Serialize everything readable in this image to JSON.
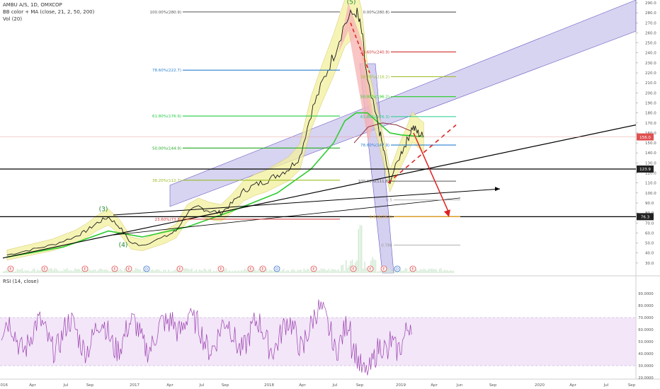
{
  "header": {
    "symbol": "AMBU A/S, 1D, OMXCOP",
    "indicator_bb": "BB color + MA (close, 21, 2, 50, 200)",
    "indicator_vol": "Vol (20)",
    "rsi_label": "RSI (14, close)"
  },
  "colors": {
    "price": "#1b1b1b",
    "ma50": "#2ecc2e",
    "bb_fill": "#f3f09c",
    "bb_fill_red": "#f7b6b6",
    "channel_fill": "#b7b0e6",
    "channel_line": "#6a5cc4",
    "rsi_line": "#9c3fb0",
    "rsi_band": "#e9d6f3",
    "arrow_red": "#e02020",
    "black_line": "#000000"
  },
  "chart_data": [
    {
      "type": "line",
      "title": "",
      "ylim": [
        20,
        290
      ],
      "y_ticks": [
        "290.0",
        "280.0",
        "270.0",
        "260.0",
        "250.0",
        "240.0",
        "230.0",
        "220.0",
        "210.0",
        "200.0",
        "190.0",
        "180.0",
        "170.0",
        "160.0",
        "150.0",
        "140.0",
        "130.0",
        "120.0",
        "110.0",
        "100.0",
        "90.0",
        "80.0",
        "70.0",
        "60.0",
        "50.0",
        "40.0",
        "30.0"
      ],
      "x_ticks": [
        "2016",
        "Apr",
        "Jul",
        "Sep",
        "2017",
        "Apr",
        "Jul",
        "Sep",
        "2018",
        "Apr",
        "Jul",
        "Sep",
        "2019",
        "Apr",
        "Jun",
        "Sep",
        "2020",
        "Apr",
        "Jul",
        "Sep"
      ],
      "price_tags": [
        {
          "label": "156.0",
          "value": 156,
          "color": "#e05050"
        },
        {
          "label": "123.9",
          "value": 123.9,
          "color": "#222222"
        },
        {
          "label": "76.3",
          "value": 76.3,
          "color": "#222222"
        }
      ],
      "price_points": [
        [
          "2016-01",
          38
        ],
        [
          "2016-03",
          43
        ],
        [
          "2016-05",
          48
        ],
        [
          "2016-07",
          56
        ],
        [
          "2016-08",
          62
        ],
        [
          "2016-09",
          70
        ],
        [
          "2016-10",
          76
        ],
        [
          "2016-11",
          66
        ],
        [
          "2016-12",
          50
        ],
        [
          "2017-01",
          48
        ],
        [
          "2017-03",
          56
        ],
        [
          "2017-04",
          62
        ],
        [
          "2017-05",
          80
        ],
        [
          "2017-06",
          86
        ],
        [
          "2017-07",
          82
        ],
        [
          "2017-08",
          80
        ],
        [
          "2017-09",
          90
        ],
        [
          "2017-10",
          102
        ],
        [
          "2017-11",
          108
        ],
        [
          "2017-12",
          112
        ],
        [
          "2018-01",
          118
        ],
        [
          "2018-02",
          124
        ],
        [
          "2018-03",
          136
        ],
        [
          "2018-04",
          180
        ],
        [
          "2018-05",
          210
        ],
        [
          "2018-06",
          238
        ],
        [
          "2018-07",
          270
        ],
        [
          "2018-08",
          282
        ],
        [
          "2018-08b",
          260
        ],
        [
          "2018-09",
          210
        ],
        [
          "2018-10",
          165
        ],
        [
          "2018-10b",
          140
        ],
        [
          "2018-11",
          112
        ],
        [
          "2018-12",
          140
        ],
        [
          "2018-12b",
          152
        ],
        [
          "2019-01",
          166
        ],
        [
          "2019-01b",
          160
        ],
        [
          "2019-02",
          156
        ]
      ],
      "ma50_points": [
        [
          "2016-01",
          36
        ],
        [
          "2016-06",
          46
        ],
        [
          "2016-10",
          62
        ],
        [
          "2017-01",
          56
        ],
        [
          "2017-05",
          66
        ],
        [
          "2017-09",
          82
        ],
        [
          "2018-01",
          100
        ],
        [
          "2018-04",
          124
        ],
        [
          "2018-06",
          150
        ],
        [
          "2018-07",
          172
        ],
        [
          "2018-08",
          180
        ],
        [
          "2018-09",
          180
        ],
        [
          "2018-10",
          170
        ],
        [
          "2018-11",
          160
        ],
        [
          "2018-12",
          158
        ],
        [
          "2019-02",
          156
        ]
      ],
      "fib_left": [
        {
          "label": "100.00%(280.9)",
          "value": 280.9,
          "color": "#555555"
        },
        {
          "label": "78.60%(222.7)",
          "value": 222.7,
          "color": "#2a7fd0"
        },
        {
          "label": "61.80%(176.9)",
          "value": 176.9,
          "color": "#22cc44"
        },
        {
          "label": "50.00%(144.9)",
          "value": 144.9,
          "color": "#22aa22"
        },
        {
          "label": "38.20%(112.7)",
          "value": 112.7,
          "color": "#99bb22"
        },
        {
          "label": "23.60%(73.8)",
          "value": 73.8,
          "color": "#d03030"
        }
      ],
      "fib_right": [
        {
          "label": "0.00%(280.8)",
          "value": 280.8,
          "color": "#555555"
        },
        {
          "label": "23.60%(240.9)",
          "value": 240.9,
          "color": "#d03030"
        },
        {
          "label": "38.20%(216.2)",
          "value": 216.2,
          "color": "#a0c030"
        },
        {
          "label": "50.00%(196.2)",
          "value": 196.2,
          "color": "#22cc22"
        },
        {
          "label": "61.80%(176.3)",
          "value": 176.3,
          "color": "#22cc88"
        },
        {
          "label": "78.60%(147.9)",
          "value": 147.9,
          "color": "#2a7fd0"
        },
        {
          "label": "100.00%(111.8)",
          "value": 111.8,
          "color": "#555555"
        }
      ],
      "fib_ext": [
        {
          "label": "0.5",
          "value": 93,
          "color": "#999999"
        },
        {
          "label": "0.618(76.3)",
          "value": 76.3,
          "color": "#e0a020"
        },
        {
          "label": "0.786",
          "value": 48,
          "color": "#999999"
        }
      ],
      "wave_labels": [
        "(3)",
        "(4)",
        "(5)"
      ],
      "event_markers": [
        "E",
        "E",
        "E",
        "E",
        "E",
        "D",
        "E",
        "E",
        "E",
        "E",
        "D",
        "E",
        "E",
        "E",
        "E",
        "D",
        "E"
      ]
    },
    {
      "type": "line",
      "title": "",
      "name": "RSI (14, close)",
      "ylim": [
        20,
        100
      ],
      "y_ticks": [
        "90.0000",
        "80.0000",
        "70.0000",
        "60.0000",
        "50.0000",
        "40.0000",
        "30.0000",
        "20.0000"
      ],
      "band": [
        30,
        70
      ]
    }
  ]
}
